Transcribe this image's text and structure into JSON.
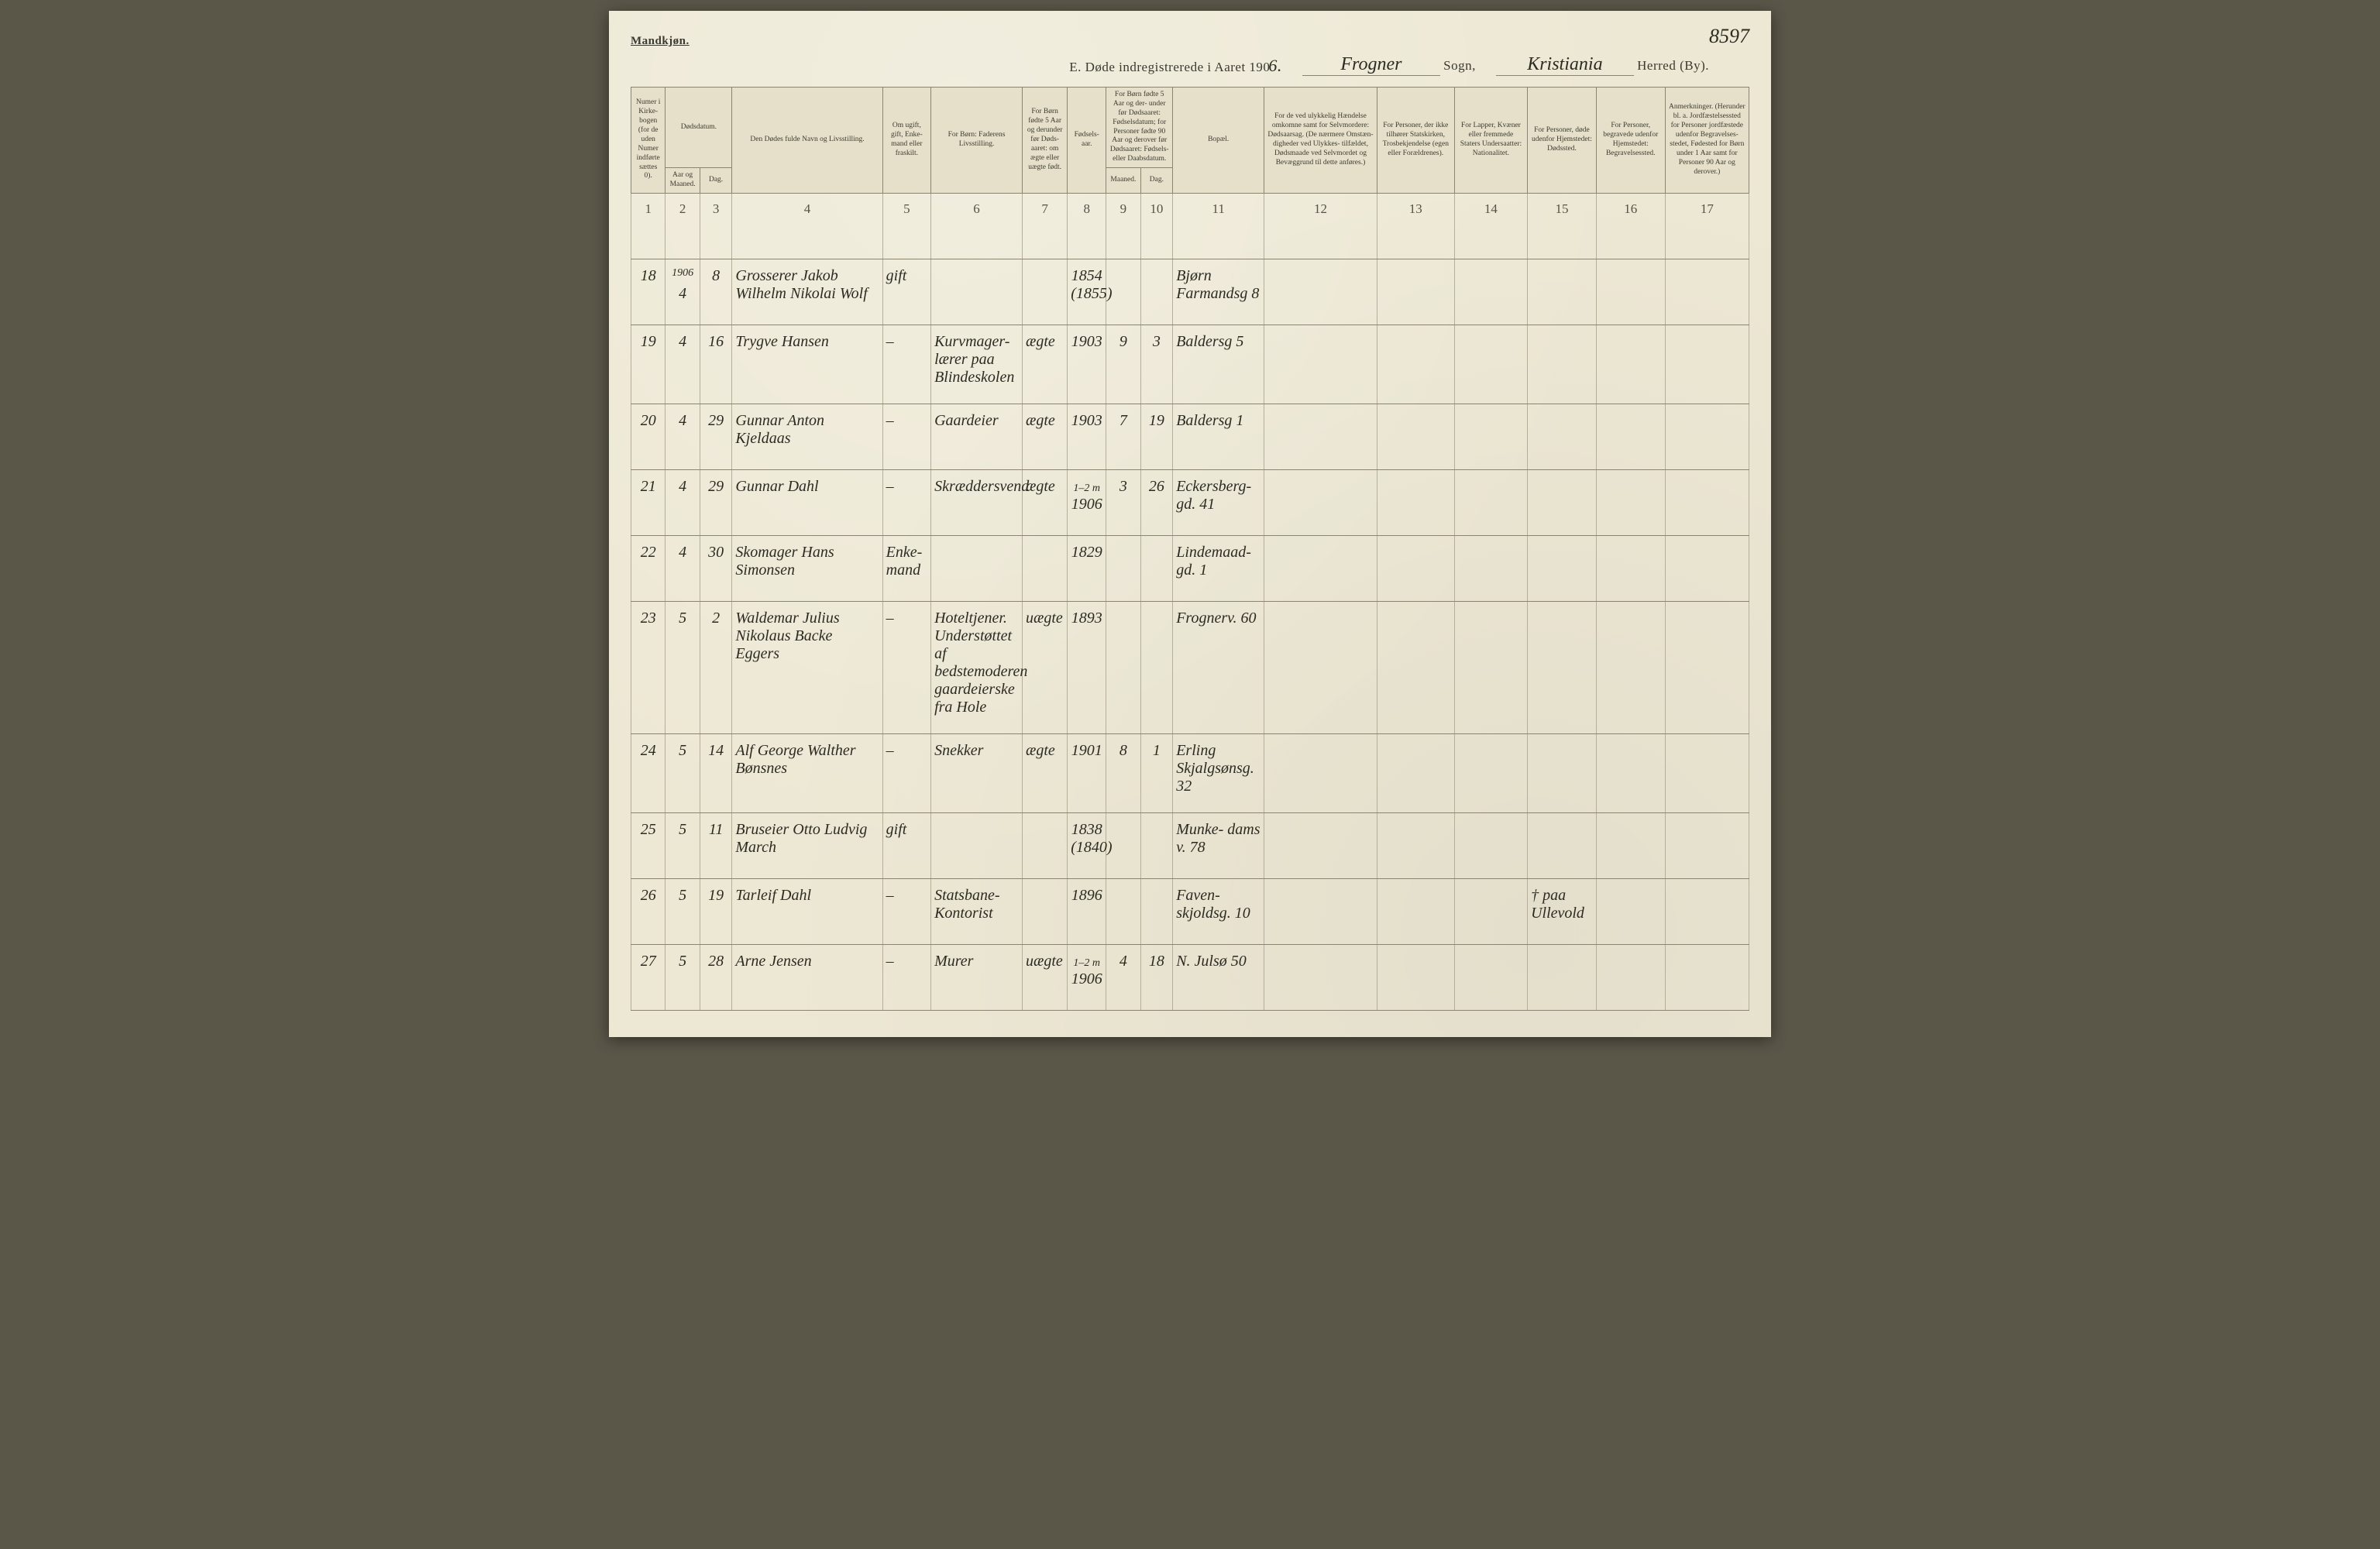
{
  "colors": {
    "paper": "#ede8d4",
    "paper_dark": "#e6e0ca",
    "ink_print": "#3a3a30",
    "ink_hand": "#2b2b22",
    "rule": "#8a8470",
    "rule_light": "#b5af99"
  },
  "header": {
    "gender_label": "Mandkjøn.",
    "page_number_hand": "8597",
    "title_prefix": "E.  Døde indregistrerede i Aaret 190",
    "title_year_hand": "6.",
    "sogn_hand": "Frogner",
    "sogn_label": "Sogn,",
    "herred_hand": "Kristiania",
    "herred_label": "Herred (By)."
  },
  "columns": [
    {
      "n": "1",
      "w": "3.2%",
      "label": "Numer i Kirke- bogen (for de uden Numer indførte sættes 0)."
    },
    {
      "n": "2",
      "w": "3.2%",
      "label": "Aar og Maaned."
    },
    {
      "n": "3",
      "w": "3.0%",
      "label": "Dag."
    },
    {
      "n": "4",
      "w": "14%",
      "label": "Den Dødes fulde Navn og Livsstilling."
    },
    {
      "n": "5",
      "w": "4.5%",
      "label": "Om ugift, gift, Enke- mand eller fraskilt."
    },
    {
      "n": "6",
      "w": "8.5%",
      "label": "For Børn: Faderens Livsstilling."
    },
    {
      "n": "7",
      "w": "4.2%",
      "label": "For Børn fødte 5 Aar og derunder før Døds- aaret: om ægte eller uægte født."
    },
    {
      "n": "8",
      "w": "3.6%",
      "label": "Fødsels- aar."
    },
    {
      "n": "9",
      "w": "3.2%",
      "label": "Maaned."
    },
    {
      "n": "10",
      "w": "3.0%",
      "label": "Dag."
    },
    {
      "n": "11",
      "w": "8.5%",
      "label": "Bopæl."
    },
    {
      "n": "12",
      "w": "10.5%",
      "label": "For de ved ulykkelig Hændelse omkomne samt for Selvmordere: Dødsaarsag. (De nærmere Omstæn- digheder ved Ulykkes- tilfældet, Dødsmaade ved Selvmordet og Bevæggrund til dette anføres.)"
    },
    {
      "n": "13",
      "w": "7.2%",
      "label": "For Personer, der ikke tilhører Statskirken, Trosbekjendelse (egen eller Forældrenes)."
    },
    {
      "n": "14",
      "w": "6.8%",
      "label": "For Lapper, Kvæner eller fremmede Staters Undersaatter: Nationalitet."
    },
    {
      "n": "15",
      "w": "6.4%",
      "label": "For Personer, døde udenfor Hjemstedet: Dødssted."
    },
    {
      "n": "16",
      "w": "6.4%",
      "label": "For Personer, begravede udenfor Hjemstedet: Begravelsessted."
    },
    {
      "n": "17",
      "w": "7.8%",
      "label": "Anmerkninger. (Herunder bl. a. Jordfæstelsessted for Personer jordfæstede udenfor Begravelses- stedet, Fødested for Børn under 1 Aar samt for Personer 90 Aar og derover.)"
    }
  ],
  "group_date_label": "Dødsdatum.",
  "group_birth_label": "For Børn fødte 5 Aar og der- under før Dødsaaret: Fødselsdatum; for Personer fødte 90 Aar og derover før Dødsaaret: Fødsels- eller Daabsdatum.",
  "year_margin": "1906",
  "rows": [
    {
      "num": "18",
      "mon": "4",
      "day": "8",
      "name": "Grosserer Jakob Wilhelm Nikolai Wolf",
      "civil": "gift",
      "father": "",
      "legit": "",
      "byear": "1854 (1855)",
      "bmon": "",
      "bday": "",
      "bopel": "Bjørn Farmandsg 8",
      "c12": "",
      "c13": "",
      "c14": "",
      "c15": "",
      "c16": "",
      "c17": ""
    },
    {
      "num": "19",
      "mon": "4",
      "day": "16",
      "name": "Trygve Hansen",
      "civil": "–",
      "father": "Kurvmager- lærer paa Blindeskolen",
      "legit": "ægte",
      "byear": "1903",
      "bmon": "9",
      "bday": "3",
      "bopel": "Baldersg 5",
      "c12": "",
      "c13": "",
      "c14": "",
      "c15": "",
      "c16": "",
      "c17": ""
    },
    {
      "num": "20",
      "mon": "4",
      "day": "29",
      "name": "Gunnar Anton Kjeldaas",
      "civil": "–",
      "father": "Gaardeier",
      "legit": "ægte",
      "byear": "1903",
      "bmon": "7",
      "bday": "19",
      "bopel": "Baldersg 1",
      "c12": "",
      "c13": "",
      "c14": "",
      "c15": "",
      "c16": "",
      "c17": ""
    },
    {
      "num": "21",
      "mon": "4",
      "day": "29",
      "name": "Gunnar Dahl",
      "civil": "–",
      "father": "Skræddersvend",
      "legit": "ægte",
      "byear": "1906",
      "bmon": "3",
      "bday": "26",
      "age_note": "1–2 m",
      "bopel": "Eckersberg- gd. 41",
      "c12": "",
      "c13": "",
      "c14": "",
      "c15": "",
      "c16": "",
      "c17": ""
    },
    {
      "num": "22",
      "mon": "4",
      "day": "30",
      "name": "Skomager Hans Simonsen",
      "civil": "Enke- mand",
      "father": "",
      "legit": "",
      "byear": "1829",
      "bmon": "",
      "bday": "",
      "bopel": "Lindemaad- gd. 1",
      "c12": "",
      "c13": "",
      "c14": "",
      "c15": "",
      "c16": "",
      "c17": ""
    },
    {
      "num": "23",
      "mon": "5",
      "day": "2",
      "name": "Waldemar Julius Nikolaus Backe Eggers",
      "civil": "–",
      "father": "Hoteltjener. Understøttet af bedstemoderen gaardeierske fra Hole",
      "legit": "uægte",
      "byear": "1893",
      "bmon": "",
      "bday": "",
      "bopel": "Frognerv. 60",
      "c12": "",
      "c13": "",
      "c14": "",
      "c15": "",
      "c16": "",
      "c17": ""
    },
    {
      "num": "24",
      "mon": "5",
      "day": "14",
      "name": "Alf George Walther Bønsnes",
      "civil": "–",
      "father": "Snekker",
      "legit": "ægte",
      "byear": "1901",
      "bmon": "8",
      "bday": "1",
      "bopel": "Erling Skjalgsønsg. 32",
      "c12": "",
      "c13": "",
      "c14": "",
      "c15": "",
      "c16": "",
      "c17": ""
    },
    {
      "num": "25",
      "mon": "5",
      "day": "11",
      "name": "Bruseier Otto Ludvig March",
      "civil": "gift",
      "father": "",
      "legit": "",
      "byear": "1838 (1840)",
      "bmon": "",
      "bday": "",
      "bopel": "Munke- dams v. 78",
      "c12": "",
      "c13": "",
      "c14": "",
      "c15": "",
      "c16": "",
      "c17": ""
    },
    {
      "num": "26",
      "mon": "5",
      "day": "19",
      "name": "Tarleif Dahl",
      "civil": "–",
      "father": "Statsbane- Kontorist",
      "legit": "",
      "byear": "1896",
      "bmon": "",
      "bday": "",
      "bopel": "Faven- skjoldsg. 10",
      "c12": "",
      "c13": "",
      "c14": "",
      "c15": "† paa Ullevold",
      "c16": "",
      "c17": ""
    },
    {
      "num": "27",
      "mon": "5",
      "day": "28",
      "name": "Arne Jensen",
      "civil": "–",
      "father": "Murer",
      "legit": "uægte",
      "byear": "1906",
      "bmon": "4",
      "bday": "18",
      "age_note": "1–2 m",
      "bopel": "N. Julsø 50",
      "c12": "",
      "c13": "",
      "c14": "",
      "c15": "",
      "c16": "",
      "c17": ""
    }
  ]
}
